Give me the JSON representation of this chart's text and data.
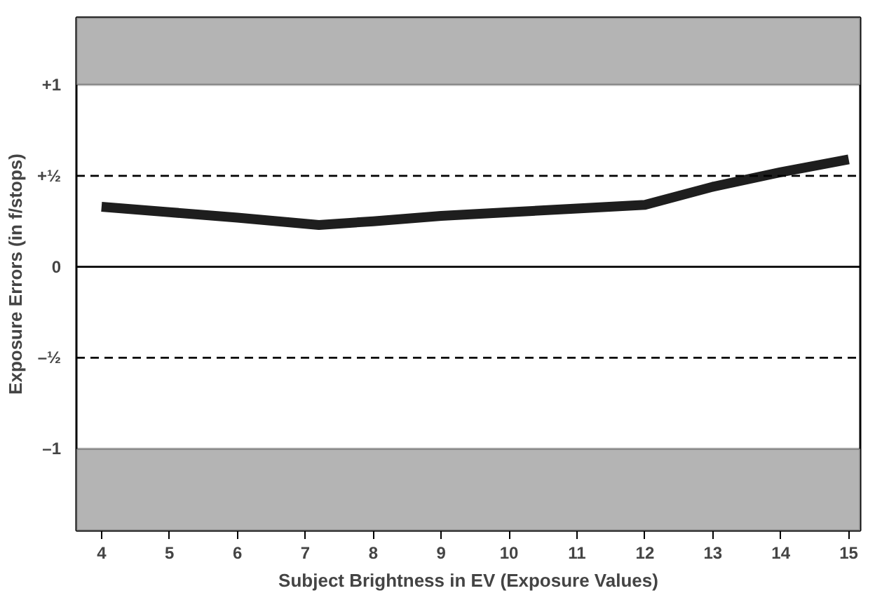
{
  "chart_data": {
    "type": "line",
    "xlabel": "Subject Brightness in EV (Exposure Values)",
    "ylabel": "Exposure Errors (in f/stops)",
    "x": [
      4,
      5,
      6,
      7.2,
      8,
      9,
      10,
      11,
      12,
      13,
      14,
      15
    ],
    "series": [
      {
        "color": "#1e1e1e",
        "values": [
          0.33,
          0.3,
          0.27,
          0.23,
          0.25,
          0.28,
          0.3,
          0.32,
          0.34,
          0.44,
          0.52,
          0.59
        ]
      }
    ],
    "xlim": [
      3.63,
      15.17
    ],
    "ylim": [
      -1.45,
      1.37
    ],
    "xticks": [
      4,
      5,
      6,
      7,
      8,
      9,
      10,
      11,
      12,
      13,
      14,
      15
    ],
    "yticks": [
      {
        "value": 1,
        "label": "+1"
      },
      {
        "value": 0.5,
        "label": "+½"
      },
      0,
      {
        "value": -0.5,
        "label": "–½"
      },
      {
        "value": -1,
        "label": "–1"
      }
    ],
    "grid": false,
    "line_style": "solid",
    "marker": "none",
    "ref_lines": [
      {
        "axis": "y",
        "value": 0.5,
        "line_style": "dashed"
      },
      {
        "axis": "y",
        "value": 0,
        "line_style": "solid"
      },
      {
        "axis": "y",
        "value": -0.5,
        "line_style": "dashed"
      }
    ],
    "bands": [
      {
        "axis": "y",
        "from": 1,
        "to": 1.37,
        "color": "#b4b4b4"
      },
      {
        "axis": "y",
        "from": -1.45,
        "to": -1,
        "color": "#b4b4b4"
      }
    ]
  }
}
